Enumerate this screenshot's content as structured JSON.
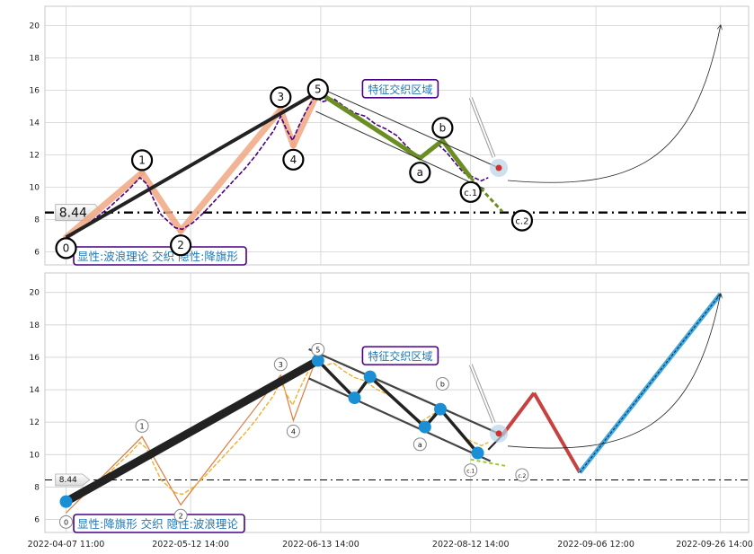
{
  "chart_data": {
    "type": "line",
    "x_axis": {
      "ticks": [
        "2022-04-07 11:00",
        "2022-05-12 14:00",
        "2022-06-13 14:00",
        "2022-08-12 14:00",
        "2022-09-06 12:00",
        "2022-09-26 14:00"
      ],
      "range": [
        0,
        100
      ]
    },
    "panels": [
      {
        "ylim": [
          5.2,
          21.2
        ],
        "yticks": [
          6,
          8,
          10,
          12,
          14,
          16,
          18,
          20
        ],
        "grid": true,
        "level_value": 8.44,
        "level_label": "8.44",
        "caption": "显性:波浪理论 交织 隐性:降旗形",
        "zone_label": "特征交织区域",
        "wave_points": [
          {
            "label": "0",
            "x": 3,
            "y": 6.9
          },
          {
            "label": "1",
            "x": 13.8,
            "y": 10.9
          },
          {
            "label": "2",
            "x": 19.3,
            "y": 7.3
          },
          {
            "label": "3",
            "x": 33.5,
            "y": 14.8
          },
          {
            "label": "4",
            "x": 35.3,
            "y": 12.6
          },
          {
            "label": "5",
            "x": 38.8,
            "y": 15.9
          },
          {
            "label": "a",
            "x": 53.3,
            "y": 11.8
          },
          {
            "label": "b",
            "x": 56.5,
            "y": 12.9
          },
          {
            "label": "c.1",
            "x": 60.5,
            "y": 10.6
          },
          {
            "label": "c.2",
            "x": 65,
            "y": 8.5
          }
        ],
        "price": [
          [
            3,
            6.8
          ],
          [
            4.5,
            7.2
          ],
          [
            6,
            7.7
          ],
          [
            7.5,
            8.2
          ],
          [
            9,
            8.7
          ],
          [
            10.5,
            9.3
          ],
          [
            12,
            9.9
          ],
          [
            13.5,
            10.6
          ],
          [
            14.5,
            10.2
          ],
          [
            15.5,
            9.2
          ],
          [
            16.5,
            8.3
          ],
          [
            17.5,
            7.9
          ],
          [
            18.5,
            7.5
          ],
          [
            19.5,
            7.4
          ],
          [
            21,
            7.8
          ],
          [
            22.5,
            8.4
          ],
          [
            24,
            9.1
          ],
          [
            25.5,
            9.8
          ],
          [
            27,
            10.5
          ],
          [
            28.5,
            11.2
          ],
          [
            30,
            12
          ],
          [
            31.5,
            12.9
          ],
          [
            32.5,
            13.5
          ],
          [
            33.5,
            14.4
          ],
          [
            34.3,
            13.6
          ],
          [
            35.2,
            12.9
          ],
          [
            36.2,
            13.9
          ],
          [
            37.2,
            14.8
          ],
          [
            38.3,
            15.6
          ],
          [
            39.5,
            15.3
          ],
          [
            41,
            15.5
          ],
          [
            42.5,
            15
          ],
          [
            44,
            14.6
          ],
          [
            45.5,
            14.4
          ],
          [
            47,
            13.9
          ],
          [
            48.5,
            13.6
          ],
          [
            50,
            13.2
          ],
          [
            51.5,
            12.5
          ],
          [
            52.5,
            12.1
          ],
          [
            53.5,
            11.9
          ],
          [
            55,
            12.3
          ],
          [
            56,
            12.6
          ],
          [
            57,
            12.2
          ],
          [
            58.5,
            11.4
          ],
          [
            59.5,
            10.9
          ],
          [
            61,
            10.6
          ],
          [
            62,
            10.4
          ],
          [
            63,
            10.6
          ]
        ],
        "wave_lines": [
          [
            3,
            6.9
          ],
          [
            38.8,
            15.9
          ]
        ],
        "endpoint": {
          "x": 64.5,
          "y": 11.2
        },
        "target": {
          "x": 96,
          "y": 20
        }
      },
      {
        "ylim": [
          5.2,
          21.2
        ],
        "yticks": [
          6,
          8,
          10,
          12,
          14,
          16,
          18,
          20
        ],
        "grid": true,
        "level_value": 8.44,
        "level_label": "8.44",
        "caption": "显性:降旗形 交织 隐性:波浪理论",
        "zone_label": "特征交织区域",
        "wave_points": [
          {
            "label": "0",
            "x": 3,
            "y": 6.4
          },
          {
            "label": "1",
            "x": 13.8,
            "y": 11.1
          },
          {
            "label": "2",
            "x": 19.3,
            "y": 6.9
          },
          {
            "label": "3",
            "x": 33.5,
            "y": 14.9
          },
          {
            "label": "4",
            "x": 35.3,
            "y": 12.1
          },
          {
            "label": "5",
            "x": 38.8,
            "y": 16.2
          },
          {
            "label": "a",
            "x": 53.3,
            "y": 11.3
          },
          {
            "label": "b",
            "x": 56.5,
            "y": 13.7
          },
          {
            "label": "c.1",
            "x": 60.5,
            "y": 9.7
          },
          {
            "label": "c.2",
            "x": 65.5,
            "y": 9.3
          }
        ],
        "flag_points": [
          [
            3,
            7.1
          ],
          [
            38.8,
            15.8
          ],
          [
            44,
            13.5
          ],
          [
            46.2,
            14.8
          ],
          [
            54,
            11.7
          ],
          [
            56.2,
            12.8
          ],
          [
            61.5,
            10.1
          ]
        ],
        "projection": [
          [
            63,
            10.3
          ],
          [
            65,
            11.2
          ],
          [
            69.5,
            13.8
          ],
          [
            76,
            8.9
          ],
          [
            96,
            19.9
          ]
        ],
        "endpoint": {
          "x": 64.5,
          "y": 11.3
        },
        "target": {
          "x": 96,
          "y": 19.9
        }
      }
    ]
  }
}
